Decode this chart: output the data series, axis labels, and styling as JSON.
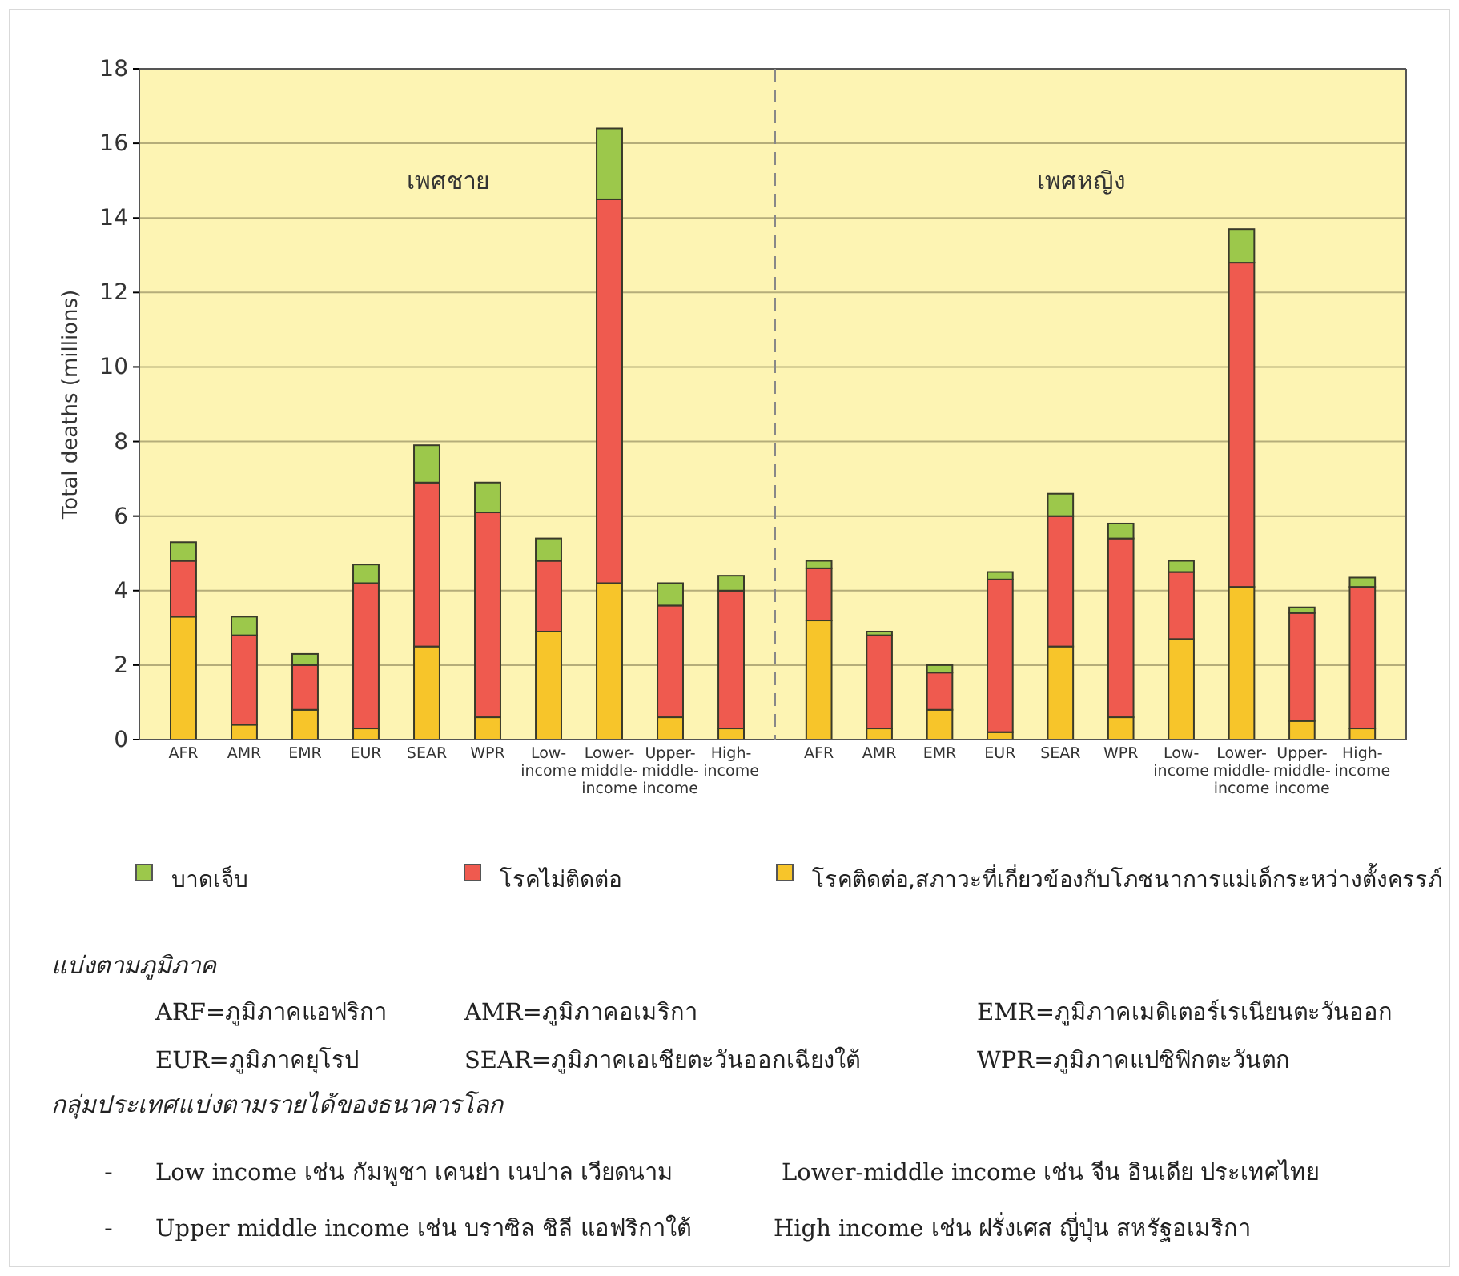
{
  "chart_data": [
    {
      "type": "bar",
      "stacked": true,
      "ylabel": "Total deaths (millions)",
      "categories": [
        "AFR",
        "AMR",
        "EMR",
        "EUR",
        "SEAR",
        "WPR",
        "Low-income",
        "Lower-middle-income",
        "Upper-middle-income",
        "High-income"
      ],
      "series": [
        {
          "name": "โรคติดต่อ,สภาวะที่เกี่ยวข้องกับโภชนาการแม่เด็กระหว่างตั้งครรภ์",
          "color": "#f7c52a",
          "values": [
            3.3,
            0.4,
            0.8,
            0.3,
            2.5,
            0.6,
            2.9,
            4.2,
            0.6,
            0.3
          ]
        },
        {
          "name": "โรคไม่ติดต่อ",
          "color": "#ef5a4f",
          "values": [
            1.5,
            2.4,
            1.2,
            3.9,
            4.4,
            5.5,
            1.9,
            10.3,
            3.0,
            3.7
          ]
        },
        {
          "name": "บาดเจ็บ",
          "color": "#9cc84b",
          "values": [
            0.5,
            0.5,
            0.3,
            0.5,
            1.0,
            0.8,
            0.6,
            1.9,
            0.6,
            0.4
          ]
        }
      ],
      "ylim": [
        0,
        18
      ],
      "yticks": [
        0,
        2,
        4,
        6,
        8,
        10,
        12,
        14,
        16,
        18
      ],
      "grid": "y",
      "legend": "bottom",
      "annotations": [
        "เพศชาย",
        "แบ่งตามภูมิภาค",
        "ARF=ภูมิภาคแอฟริกา",
        "AMR=ภูมิภาคอเมริกา",
        "EMR=ภูมิภาคเมดิเตอร์เรเนียนตะวันออก",
        "EUR=ภูมิภาคยุโรป",
        "SEAR=ภูมิภาคเอเชียตะวันออกเฉียงใต้",
        "WPR=ภูมิภาคแปซิฟิกตะวันตก",
        "กลุ่มประเทศแบ่งตามรายได้ของธนาคารโลก",
        "- Low income เช่น กัมพูชา เคนย่า เนปาล เวียดนาม",
        "Lower-middle income เช่น จีน อินเดีย ประเทศไทย",
        "- Upper middle income เช่น บราซิล ชิลี แอฟริกาใต้",
        "High income  เช่น ฝรั่งเศส  ญี่ปุ่น สหรัฐอเมริกา"
      ]
    },
    {
      "type": "bar",
      "stacked": true,
      "categories": [
        "AFR",
        "AMR",
        "EMR",
        "EUR",
        "SEAR",
        "WPR",
        "Low-income",
        "Lower-middle-income",
        "Upper-middle-income",
        "High-income"
      ],
      "series": [
        {
          "color": "#f7c52a",
          "values": [
            3.2,
            0.3,
            0.8,
            0.2,
            2.5,
            0.6,
            2.7,
            4.1,
            0.5,
            0.3
          ]
        },
        {
          "color": "#ef5a4f",
          "values": [
            1.4,
            2.5,
            1.0,
            4.1,
            3.5,
            4.8,
            1.8,
            8.7,
            2.9,
            3.8
          ]
        },
        {
          "color": "#9cc84b",
          "values": [
            0.2,
            0.1,
            0.2,
            0.2,
            0.6,
            0.4,
            0.3,
            0.9,
            0.15,
            0.25
          ]
        }
      ],
      "ylim": [
        0,
        18
      ],
      "yticks": [
        0,
        2,
        4,
        6,
        8,
        10,
        12,
        14,
        16,
        18
      ],
      "grid": "y",
      "tick_labels": "x",
      "annotations": [
        "เพศหญิง"
      ]
    }
  ]
}
